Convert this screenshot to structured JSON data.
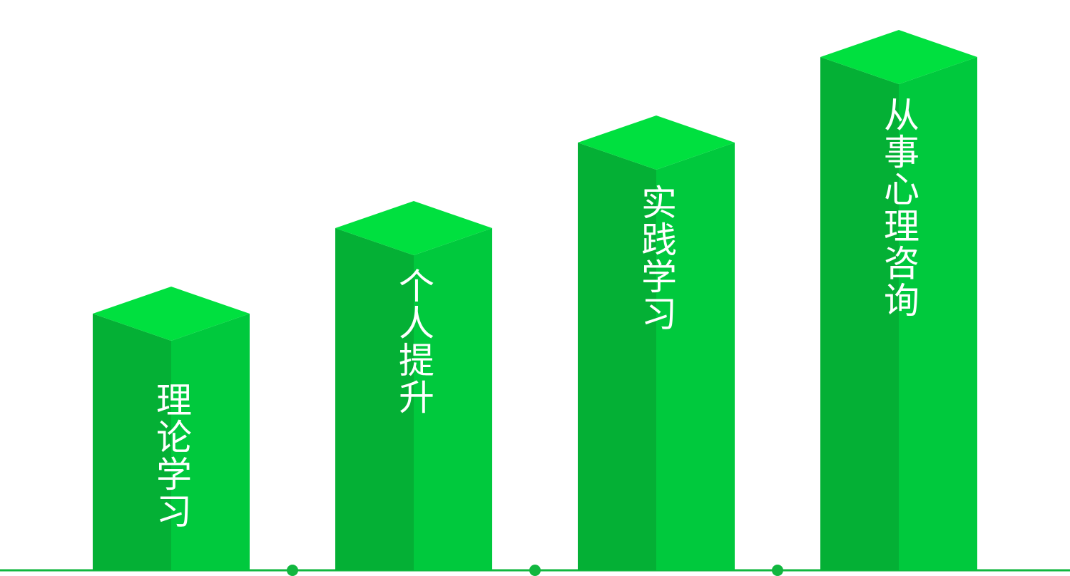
{
  "steps": [
    {
      "label": "理论学习",
      "level": 1
    },
    {
      "label": "个人提升",
      "level": 2
    },
    {
      "label": "实践学习",
      "level": 3
    },
    {
      "label": "从事心理咨询",
      "level": 4
    }
  ],
  "colors": {
    "bar_left": "#04b035",
    "bar_right": "#00c93d",
    "bar_top": "#00e03f",
    "baseline": "#11b73f",
    "label": "#ffffff"
  }
}
